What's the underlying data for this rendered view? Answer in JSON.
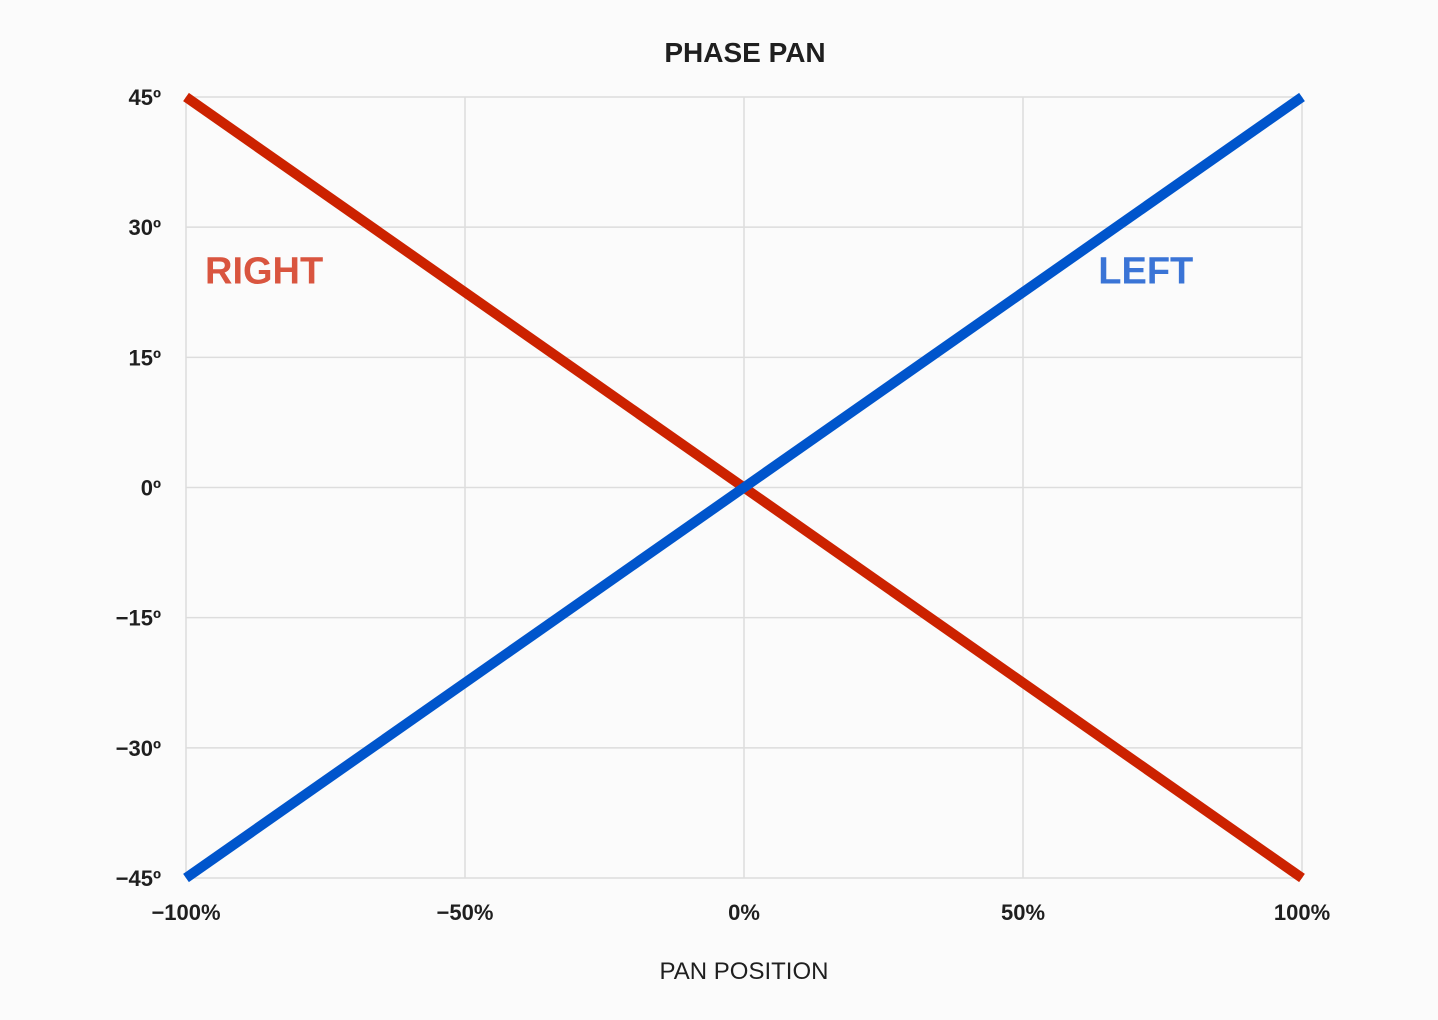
{
  "chart_data": {
    "type": "line",
    "title": "PHASE PAN",
    "xlabel": "PAN POSITION",
    "ylabel": "",
    "xlim": [
      -100,
      100
    ],
    "ylim": [
      -45,
      45
    ],
    "x_ticks": [
      -100,
      -50,
      0,
      50,
      100
    ],
    "x_tick_labels": [
      "−100%",
      "−50%",
      "0%",
      "50%",
      "100%"
    ],
    "y_ticks": [
      45,
      30,
      15,
      0,
      -15,
      -30,
      -45
    ],
    "y_tick_labels": [
      "45º",
      "30º",
      "15º",
      "0º",
      "−15º",
      "−30º",
      "−45º"
    ],
    "grid": true,
    "series": [
      {
        "name": "RIGHT",
        "color": "#cc2200",
        "label_color": "#d9553f",
        "x": [
          -100,
          100
        ],
        "y": [
          45,
          -45
        ]
      },
      {
        "name": "LEFT",
        "color": "#0055cc",
        "label_color": "#3a74d6",
        "x": [
          -100,
          100
        ],
        "y": [
          -45,
          45
        ]
      }
    ]
  }
}
